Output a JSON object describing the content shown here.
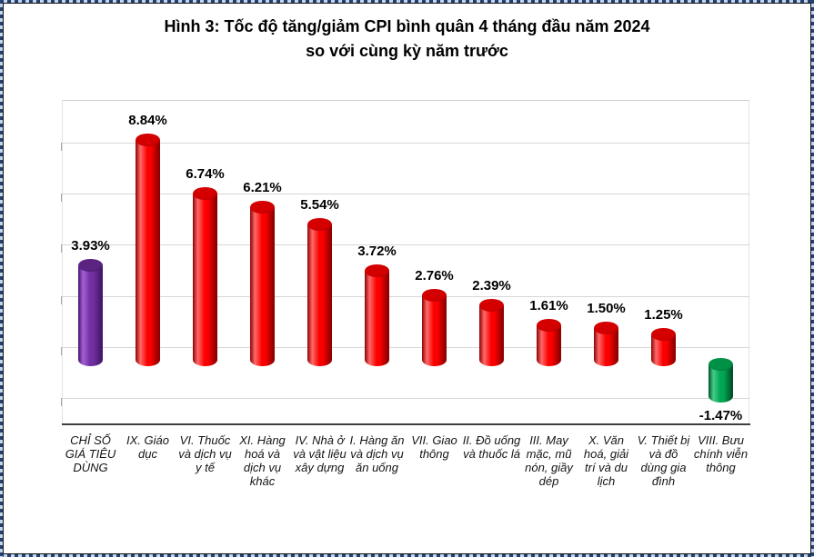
{
  "title": {
    "line1": "Hình 3: Tốc độ tăng/giảm CPI bình quân 4 tháng đầu năm 2024",
    "line2": "so với cùng kỳ năm trước"
  },
  "chart_data": {
    "type": "bar",
    "style": "3d-cylinder-columns",
    "title": "Hình 3: Tốc độ tăng/giảm CPI bình quân 4 tháng đầu năm 2024 so với cùng kỳ năm trước",
    "unit": "%",
    "grid": true,
    "legend": false,
    "y_axis_labels_visible": false,
    "ylim": [
      -3,
      10.3
    ],
    "gridline_values": [
      8,
      6,
      4,
      2,
      0,
      -2
    ],
    "categories": [
      "CHỈ SỐ GIÁ TIÊU DÙNG",
      "IX. Giáo dục",
      "VI. Thuốc và dịch vụ y tế",
      "XI. Hàng hoá và dịch vụ khác",
      "IV. Nhà ở và vật liệu xây dựng",
      "I. Hàng ăn và dịch vụ ăn uống",
      "VII. Giao thông",
      "II. Đồ uống và thuốc lá",
      "III. May mặc, mũ nón, giầy dép",
      "X. Văn hoá, giải trí và du lịch",
      "V. Thiết bị và đồ dùng gia đình",
      "VIII. Bưu chính viễn thông"
    ],
    "values": [
      3.93,
      8.84,
      6.74,
      6.21,
      5.54,
      3.72,
      2.76,
      2.39,
      1.61,
      1.5,
      1.25,
      -1.47
    ],
    "value_labels": [
      "3.93%",
      "8.84%",
      "6.74%",
      "6.21%",
      "5.54%",
      "3.72%",
      "2.76%",
      "2.39%",
      "1.61%",
      "1.50%",
      "1.25%",
      "-1.47%"
    ],
    "bar_color_keys": [
      "purple",
      "red",
      "red",
      "red",
      "red",
      "red",
      "red",
      "red",
      "red",
      "red",
      "red",
      "green"
    ],
    "colors": {
      "red": {
        "light": "#ff6a6a",
        "main": "#fb0000",
        "dark": "#8f0000",
        "cap": "#d40000",
        "cap_dark": "#9c0000"
      },
      "purple": {
        "light": "#a55fd8",
        "main": "#7030a0",
        "dark": "#431767",
        "cap": "#5b2483",
        "cap_dark": "#3d1458"
      },
      "green": {
        "light": "#45cc88",
        "main": "#00a651",
        "dark": "#005229",
        "cap": "#009147",
        "cap_dark": "#006633"
      }
    }
  }
}
